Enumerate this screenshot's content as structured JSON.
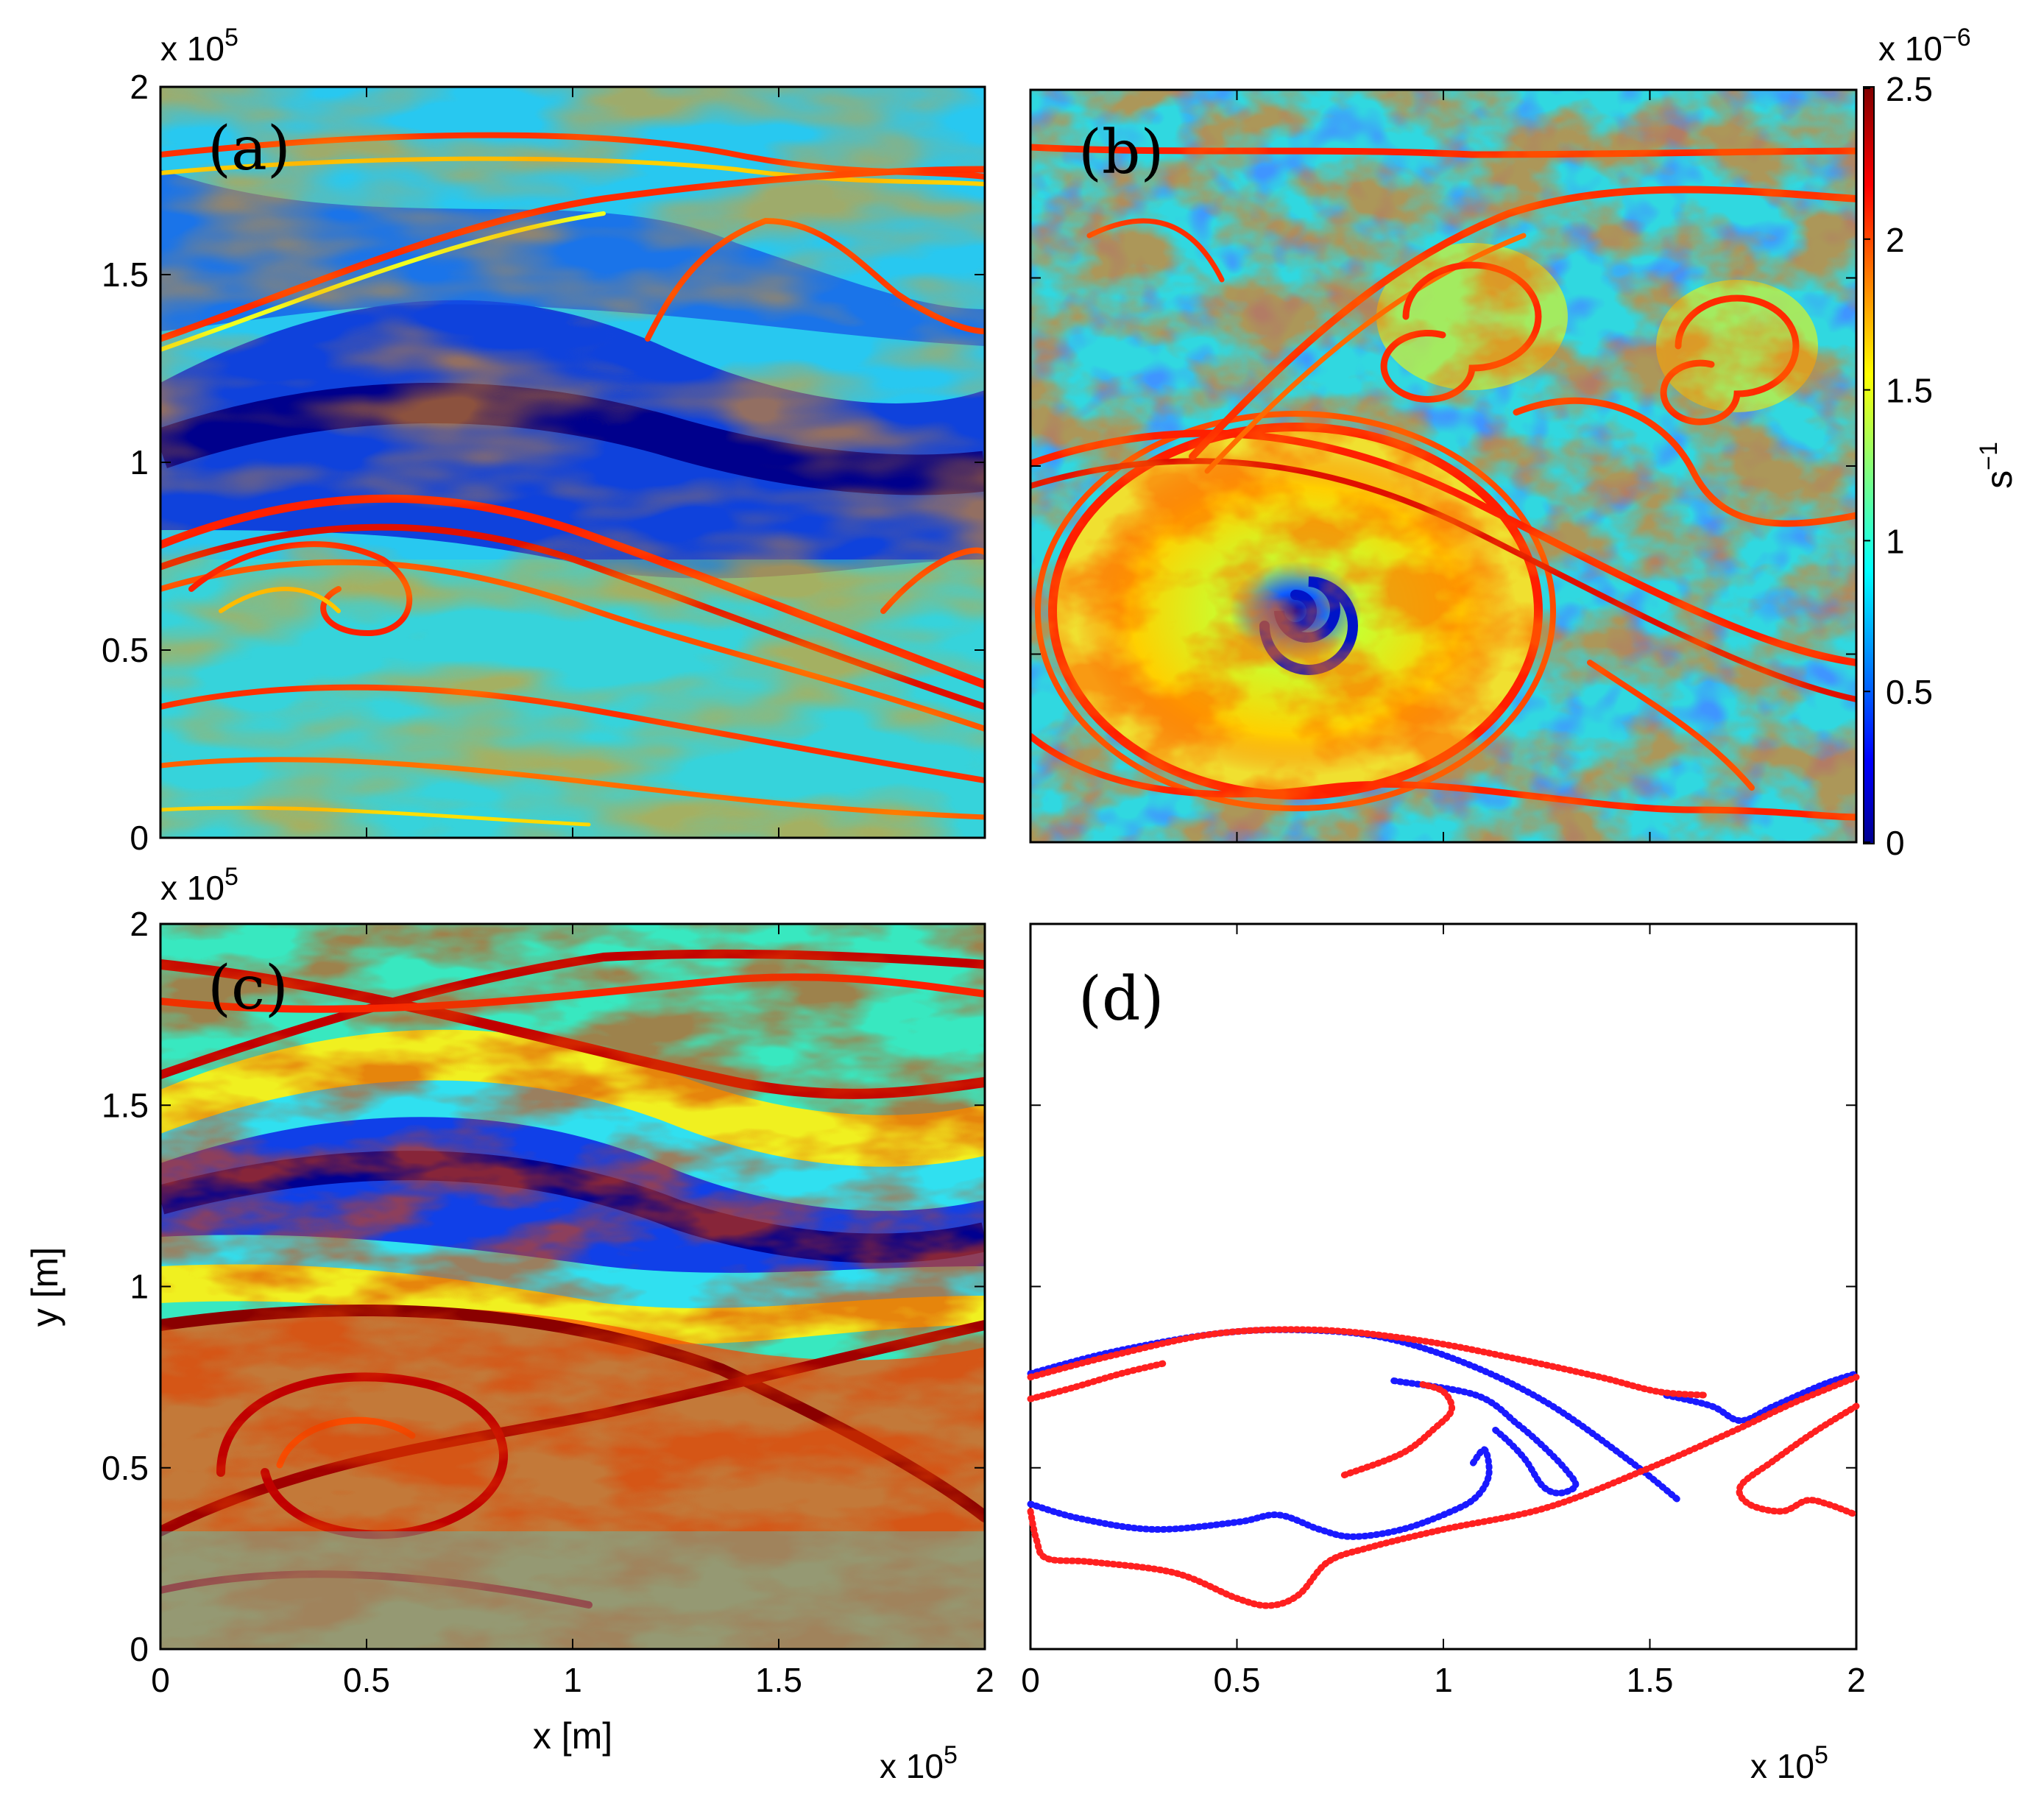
{
  "figure": {
    "colorbar": {
      "label": "s",
      "label_exp": "−1",
      "multiplier": "x 10",
      "multiplier_exp": "−6"
    },
    "panels": [
      {
        "id": "a",
        "tag": "(a)"
      },
      {
        "id": "b",
        "tag": "(b)"
      },
      {
        "id": "c",
        "tag": "(c)"
      },
      {
        "id": "d",
        "tag": "(d)"
      }
    ]
  },
  "chart_data": [
    {
      "panel": "(a)",
      "type": "heatmap",
      "xlim": [
        0,
        200000
      ],
      "ylim": [
        0,
        200000
      ],
      "xticks": [],
      "yticks": [
        "0",
        "0.5",
        "1",
        "1.5",
        "2"
      ],
      "y_multiplier": "x 10",
      "y_multiplier_exp": "5",
      "clim": [
        0,
        2.5e-06
      ],
      "colormap": "jet"
    },
    {
      "panel": "(b)",
      "type": "heatmap",
      "xlim": [
        0,
        200000
      ],
      "ylim": [
        0,
        200000
      ],
      "xticks": [],
      "yticks": [],
      "clim": [
        0,
        2.5e-06
      ],
      "colormap": "jet",
      "colorbar_ticks": [
        "0",
        "0.5",
        "1",
        "1.5",
        "2",
        "2.5"
      ],
      "colorbar_label": "s^-1",
      "colorbar_multiplier": "x 10^-6"
    },
    {
      "panel": "(c)",
      "type": "heatmap",
      "xlim": [
        0,
        200000
      ],
      "ylim": [
        0,
        200000
      ],
      "xticks": [
        "0",
        "0.5",
        "1",
        "1.5",
        "2"
      ],
      "yticks": [
        "0",
        "0.5",
        "1",
        "1.5",
        "2"
      ],
      "xlabel": "x [m]",
      "ylabel": "y [m]",
      "x_multiplier": "x 10",
      "x_multiplier_exp": "5",
      "y_multiplier": "x 10",
      "y_multiplier_exp": "5",
      "clim": [
        0,
        2.5e-06
      ],
      "colormap": "jet"
    },
    {
      "panel": "(d)",
      "type": "scatter",
      "xlim": [
        0,
        200000
      ],
      "ylim": [
        0,
        200000
      ],
      "xticks": [
        "0",
        "0.5",
        "1",
        "1.5",
        "2"
      ],
      "yticks": [],
      "x_multiplier": "x 10",
      "x_multiplier_exp": "5",
      "series": [
        {
          "color": "#1a1aff",
          "segments": [
            [
              [
                0,
                76000
              ],
              [
                20000,
                82000
              ],
              [
                45000,
                87000
              ],
              [
                65000,
                88000
              ],
              [
                85000,
                86000
              ],
              [
                105000,
                79000
              ],
              [
                125000,
                68000
              ],
              [
                145000,
                52000
              ],
              [
                157000,
                41000
              ]
            ],
            [
              [
                88000,
                74000
              ],
              [
                108000,
                70000
              ],
              [
                118000,
                62000
              ],
              [
                125000,
                55000
              ],
              [
                130000,
                49000
              ],
              [
                132000,
                45000
              ],
              [
                128000,
                43000
              ],
              [
                124000,
                45000
              ],
              [
                120000,
                52000
              ],
              [
                116000,
                57000
              ],
              [
                112000,
                61000
              ]
            ],
            [
              [
                0,
                40000
              ],
              [
                12000,
                36000
              ],
              [
                30000,
                33000
              ],
              [
                50000,
                35000
              ],
              [
                60000,
                37000
              ],
              [
                70000,
                33000
              ],
              [
                78000,
                31000
              ],
              [
                90000,
                33000
              ],
              [
                102000,
                38000
              ],
              [
                108000,
                42000
              ],
              [
                111000,
                48000
              ],
              [
                110000,
                55000
              ],
              [
                107000,
                51000
              ]
            ],
            [
              [
                154000,
                70000
              ],
              [
                165000,
                67000
              ],
              [
                172000,
                63000
              ],
              [
                180000,
                67000
              ],
              [
                192000,
                73000
              ],
              [
                200000,
                76000
              ]
            ]
          ]
        },
        {
          "color": "#ff2020",
          "segments": [
            [
              [
                0,
                75000
              ],
              [
                20000,
                81000
              ],
              [
                45000,
                87000
              ],
              [
                70000,
                88000
              ],
              [
                95000,
                85000
              ],
              [
                118000,
                80000
              ],
              [
                138000,
                75000
              ],
              [
                152000,
                71000
              ],
              [
                164000,
                70000
              ]
            ],
            [
              [
                0,
                69000
              ],
              [
                10000,
                72000
              ],
              [
                22000,
                76000
              ],
              [
                33000,
                79000
              ]
            ],
            [
              [
                76000,
                48000
              ],
              [
                90000,
                54000
              ],
              [
                98000,
                61000
              ],
              [
                102000,
                66000
              ],
              [
                100000,
                71000
              ],
              [
                95000,
                73000
              ]
            ],
            [
              [
                0,
                38000
              ],
              [
                1500,
                30000
              ],
              [
                4000,
                25000
              ],
              [
                15000,
                24000
              ],
              [
                35000,
                21000
              ],
              [
                50000,
                14000
              ],
              [
                58000,
                12000
              ],
              [
                65000,
                15000
              ],
              [
                72000,
                24000
              ],
              [
                82000,
                28000
              ],
              [
                100000,
                33000
              ],
              [
                125000,
                39000
              ],
              [
                150000,
                50000
              ],
              [
                170000,
                60000
              ],
              [
                185000,
                68000
              ],
              [
                200000,
                75000
              ]
            ],
            [
              [
                200000,
                67000
              ],
              [
                190000,
                60000
              ],
              [
                180000,
                52000
              ],
              [
                172000,
                45000
              ],
              [
                174000,
                40000
              ],
              [
                182000,
                38000
              ],
              [
                188000,
                41000
              ],
              [
                193000,
                40000
              ],
              [
                200000,
                37000
              ]
            ]
          ]
        }
      ]
    }
  ]
}
